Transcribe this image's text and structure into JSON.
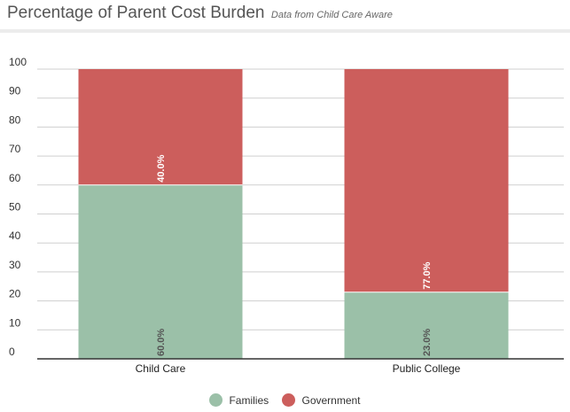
{
  "header": {
    "title": "Percentage of Parent Cost Burden",
    "subtitle": "Data from Child Care Aware"
  },
  "colors": {
    "families": "#9bc0a8",
    "government": "#cc5e5c",
    "grid": "#cfcfcf",
    "axis": "#333333"
  },
  "chart_data": {
    "type": "bar",
    "stacked": true,
    "title": "Percentage of Parent Cost Burden",
    "subtitle": "Data from Child Care Aware",
    "categories": [
      "Child Care",
      "Public College"
    ],
    "series": [
      {
        "name": "Families",
        "values": [
          60,
          23
        ],
        "labels": [
          "60.0%",
          "23.0%"
        ]
      },
      {
        "name": "Government",
        "values": [
          40,
          77
        ],
        "labels": [
          "40.0%",
          "77.0%"
        ]
      }
    ],
    "y_ticks": [
      "0",
      "10",
      "20",
      "30",
      "40",
      "50",
      "60",
      "70",
      "80",
      "90",
      "100"
    ],
    "ylim": [
      0,
      100
    ],
    "grid": true,
    "legend_position": "bottom"
  }
}
